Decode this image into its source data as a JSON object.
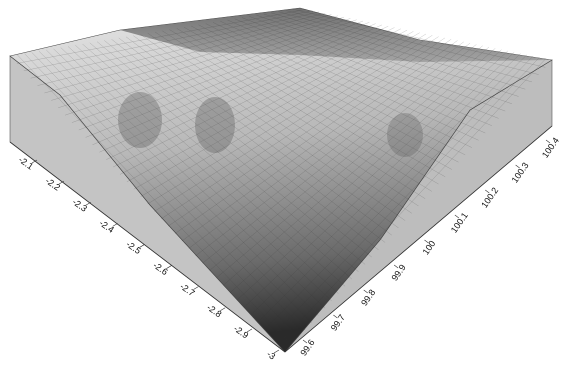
{
  "chart_data": {
    "type": "surface",
    "xticks": [
      -2.1,
      -2.2,
      -2.3,
      -2.4,
      -2.5,
      -2.6,
      -2.7,
      -2.8,
      -2.9,
      -3
    ],
    "xlim": [
      -2.1,
      -3
    ],
    "yticks": [
      99.6,
      99.7,
      99.8,
      99.9,
      100,
      100.1,
      100.2,
      100.3,
      100.4
    ],
    "ylim": [
      99.6,
      100.4
    ]
  }
}
